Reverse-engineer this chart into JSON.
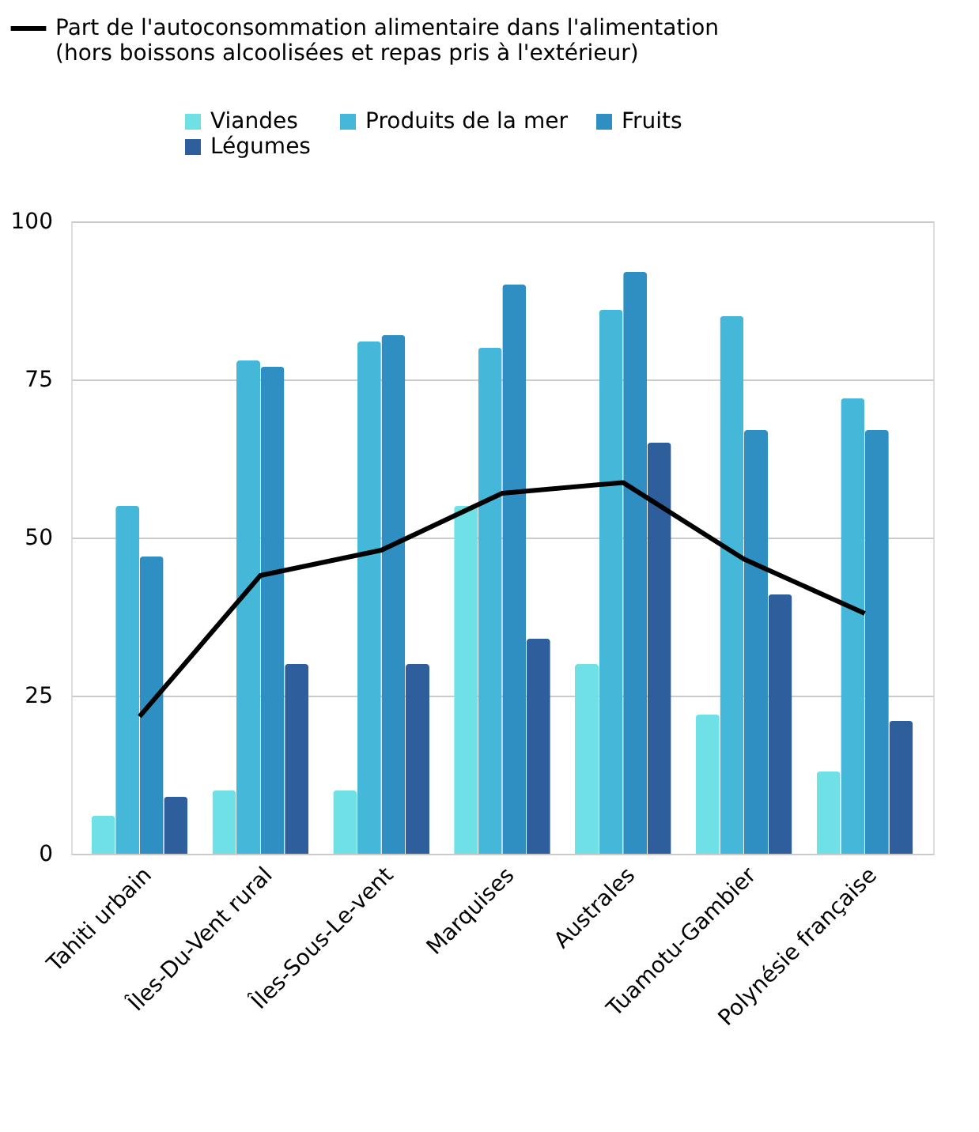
{
  "chart_data": {
    "type": "bar",
    "categories": [
      "Tahiti urbain",
      "Îles-Du-Vent rural",
      "Îles-Sous-Le-vent",
      "Marquises",
      "Australes",
      "Tuamotu-Gambier",
      "Polynésie française"
    ],
    "series": [
      {
        "name": "Viandes",
        "color": "#6fe1e6",
        "values": [
          6,
          10,
          10,
          55,
          30,
          22,
          13
        ]
      },
      {
        "name": "Produits de la mer",
        "color": "#45b8d9",
        "values": [
          55,
          78,
          81,
          80,
          86,
          85,
          72
        ]
      },
      {
        "name": "Fruits",
        "color": "#2f8fc2",
        "values": [
          47,
          77,
          82,
          90,
          92,
          67,
          67
        ]
      },
      {
        "name": "Légumes",
        "color": "#2e5f9c",
        "values": [
          9,
          30,
          30,
          34,
          65,
          41,
          21
        ]
      },
      {
        "name": "Part de l'autoconsommation alimentaire dans l'alimentation\n(hors boissons alcoolisées et repas pris à l'extérieur)",
        "color": "#000000",
        "type": "line",
        "values": [
          21.7,
          44,
          48,
          57,
          58.7,
          46.6,
          38
        ]
      }
    ],
    "ylim": [
      0,
      100
    ],
    "yticks": [
      0,
      25,
      50,
      75,
      100
    ],
    "grid": "y",
    "legend": "top",
    "marker": "none",
    "line_style": "solid"
  }
}
